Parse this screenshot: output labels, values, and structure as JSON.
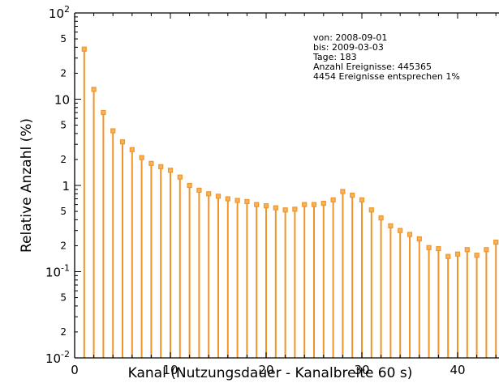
{
  "colors": {
    "series": "#f0952a",
    "marker_fill": "#f6b35a",
    "axis": "#000000"
  },
  "chart_data": {
    "type": "bar",
    "style": "stem",
    "title": "",
    "xlabel": "Kanal (Nutzungsdauer - Kanalbreite 60 s)",
    "ylabel": "Relative Anzahl (%)",
    "xlim": [
      0,
      44
    ],
    "ylim": [
      0.01,
      100
    ],
    "yscale": "log",
    "grid": false,
    "x_ticks": [
      0,
      10,
      20,
      30,
      40
    ],
    "x_tick_labels": [
      "0",
      "10",
      "20",
      "30",
      "40"
    ],
    "y_decade_ticks": [
      {
        "value": 0.01,
        "base": "10",
        "exp": "-2"
      },
      {
        "value": 0.1,
        "base": "10",
        "exp": "-1"
      },
      {
        "value": 1,
        "base": "1",
        "exp": ""
      },
      {
        "value": 10,
        "base": "10",
        "exp": ""
      },
      {
        "value": 100,
        "base": "10",
        "exp": "2"
      }
    ],
    "y_minor_labeled": [
      {
        "value": 0.02,
        "label": "2"
      },
      {
        "value": 0.05,
        "label": "5"
      },
      {
        "value": 0.2,
        "label": "2"
      },
      {
        "value": 0.5,
        "label": "5"
      },
      {
        "value": 2,
        "label": "2"
      },
      {
        "value": 5,
        "label": "5"
      },
      {
        "value": 20,
        "label": "2"
      },
      {
        "value": 50,
        "label": "5"
      }
    ],
    "annotations": [
      "von: 2008-09-01",
      "bis: 2009-03-03",
      "Tage: 183",
      "Anzahl Ereignisse: 445365",
      "4454 Ereignisse entsprechen 1%"
    ],
    "x": [
      1,
      2,
      3,
      4,
      5,
      6,
      7,
      8,
      9,
      10,
      11,
      12,
      13,
      14,
      15,
      16,
      17,
      18,
      19,
      20,
      21,
      22,
      23,
      24,
      25,
      26,
      27,
      28,
      29,
      30,
      31,
      32,
      33,
      34,
      35,
      36,
      37,
      38,
      39,
      40,
      41,
      42,
      43,
      44
    ],
    "values": [
      38,
      13,
      7,
      4.3,
      3.2,
      2.6,
      2.1,
      1.8,
      1.65,
      1.5,
      1.25,
      1.0,
      0.88,
      0.8,
      0.75,
      0.7,
      0.67,
      0.65,
      0.6,
      0.58,
      0.55,
      0.52,
      0.53,
      0.6,
      0.6,
      0.62,
      0.68,
      0.85,
      0.77,
      0.68,
      0.52,
      0.42,
      0.34,
      0.3,
      0.27,
      0.24,
      0.19,
      0.185,
      0.15,
      0.16,
      0.18,
      0.155,
      0.18,
      0.22
    ]
  }
}
